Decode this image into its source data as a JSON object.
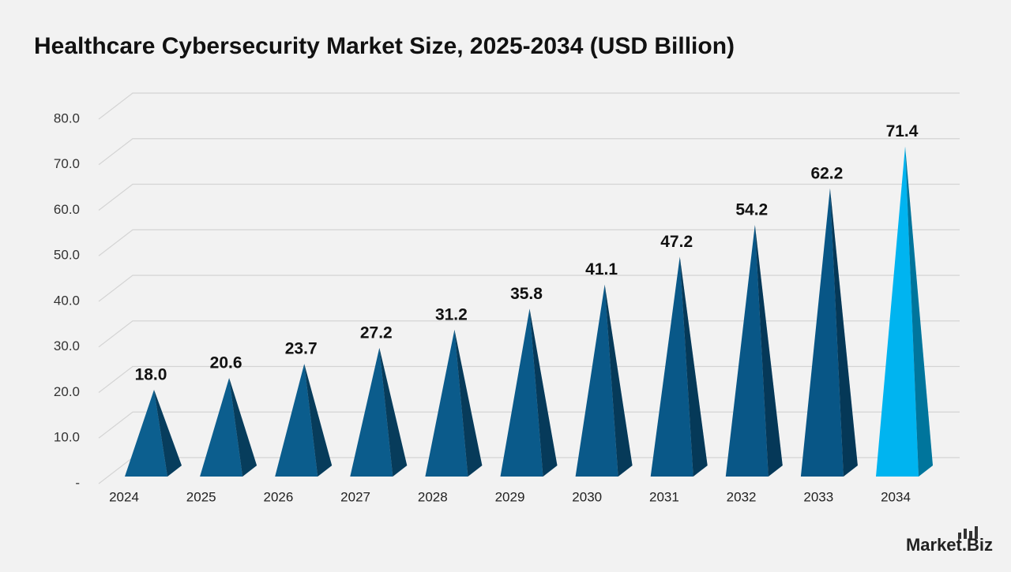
{
  "chart_data": {
    "type": "pyramid",
    "title": "Healthcare Cybersecurity Market Size, 2025-2034 (USD Billion)",
    "categories": [
      "2024",
      "2025",
      "2026",
      "2027",
      "2028",
      "2029",
      "2030",
      "2031",
      "2032",
      "2033",
      "2034"
    ],
    "values": [
      18.0,
      20.6,
      23.7,
      27.2,
      31.2,
      35.8,
      41.1,
      47.2,
      54.2,
      62.2,
      71.4
    ],
    "value_labels": [
      "18.0",
      "20.6",
      "23.7",
      "27.2",
      "31.2",
      "35.8",
      "41.1",
      "47.2",
      "54.2",
      "62.2",
      "71.4"
    ],
    "colors": [
      "#0c5f8f",
      "#0c5e8e",
      "#0b5d8d",
      "#0b5c8c",
      "#0b5b8b",
      "#0a5a8a",
      "#0a5989",
      "#095888",
      "#095787",
      "#085686",
      "#00b4f0"
    ],
    "ylim": [
      0,
      80
    ],
    "yticks": [
      {
        "value": 0,
        "label": "-"
      },
      {
        "value": 10,
        "label": "10.0"
      },
      {
        "value": 20,
        "label": "20.0"
      },
      {
        "value": 30,
        "label": "30.0"
      },
      {
        "value": 40,
        "label": "40.0"
      },
      {
        "value": 50,
        "label": "50.0"
      },
      {
        "value": 60,
        "label": "60.0"
      },
      {
        "value": 70,
        "label": "70.0"
      },
      {
        "value": 80,
        "label": "80.0"
      }
    ],
    "grid": true,
    "logo": "Market.Biz"
  }
}
